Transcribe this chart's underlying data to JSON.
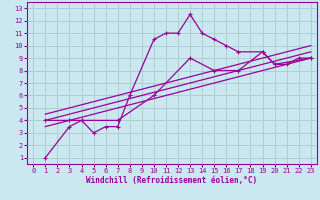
{
  "xlabel": "Windchill (Refroidissement éolien,°C)",
  "bg_color": "#cbe8f0",
  "line_color": "#990099",
  "grid_color": "#aacccc",
  "xlim": [
    -0.5,
    23.5
  ],
  "ylim": [
    0.5,
    13.5
  ],
  "xticks": [
    0,
    1,
    2,
    3,
    4,
    5,
    6,
    7,
    8,
    9,
    10,
    11,
    12,
    13,
    14,
    15,
    16,
    17,
    18,
    19,
    20,
    21,
    22,
    23
  ],
  "yticks": [
    1,
    2,
    3,
    4,
    5,
    6,
    7,
    8,
    9,
    10,
    11,
    12,
    13
  ],
  "line1_x": [
    1,
    3,
    4,
    5,
    6,
    7,
    8,
    10,
    11,
    12,
    13,
    14,
    15,
    16,
    17,
    19,
    20,
    21,
    22,
    23
  ],
  "line1_y": [
    1,
    3.5,
    4,
    3,
    3.5,
    3.5,
    6,
    10.5,
    11,
    11,
    12.5,
    11,
    10.5,
    10,
    9.5,
    9.5,
    8.5,
    8.5,
    9,
    9
  ],
  "line2_x": [
    1,
    3,
    4,
    7,
    10,
    13,
    15,
    17,
    19,
    20,
    23
  ],
  "line2_y": [
    4,
    4,
    4,
    4,
    6,
    9,
    8,
    8,
    9.5,
    8.5,
    9
  ],
  "line3_x": [
    1,
    23
  ],
  "line3_y": [
    3.5,
    9
  ],
  "line4_x": [
    1,
    23
  ],
  "line4_y": [
    4,
    9.5
  ],
  "line5_x": [
    1,
    23
  ],
  "line5_y": [
    4.5,
    10
  ],
  "xlabel_fontsize": 5.5,
  "tick_fontsize": 5
}
